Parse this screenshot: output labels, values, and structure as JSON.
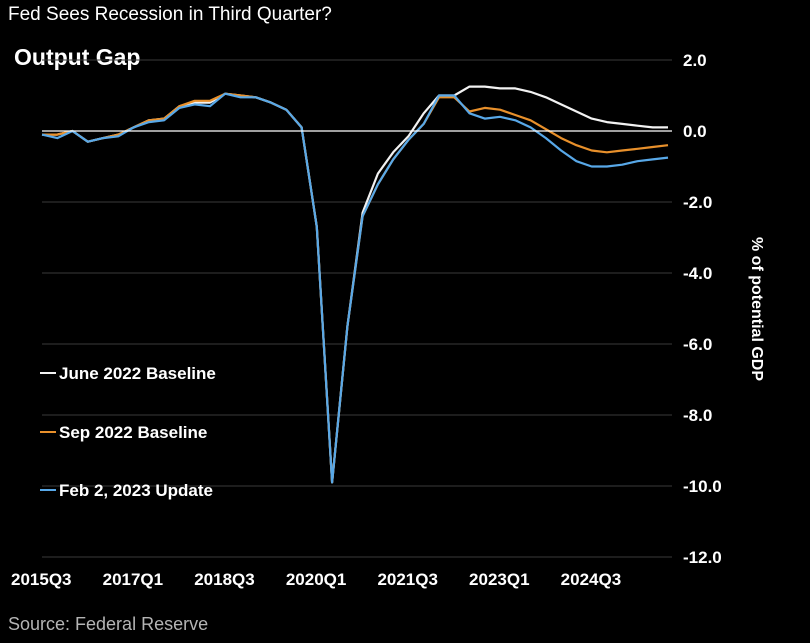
{
  "headline": "Fed Sees Recession in Third Quarter?",
  "source": "Source: Federal Reserve",
  "colors": {
    "background": "#000000",
    "grid": "#3a3a3a",
    "axis": "#ffffff"
  },
  "chart_data": {
    "type": "line",
    "title": "Output Gap",
    "ylabel": "% of potential GDP",
    "ylim": [
      -12.0,
      2.0
    ],
    "yticks": [
      2.0,
      0.0,
      -2.0,
      -4.0,
      -6.0,
      -8.0,
      -10.0,
      -12.0
    ],
    "ytick_labels": [
      "2.0",
      "0.0",
      "-2.0",
      "-4.0",
      "-6.0",
      "-8.0",
      "-10.0",
      "-12.0"
    ],
    "y_axis_position": "right",
    "grid": true,
    "legend_position": "left",
    "x_tick_labels": [
      "2015Q3",
      "2017Q1",
      "2018Q3",
      "2020Q1",
      "2021Q3",
      "2023Q1",
      "2024Q3"
    ],
    "x_tick_index": [
      0,
      6,
      12,
      18,
      24,
      30,
      36
    ],
    "categories": [
      "2015Q3",
      "2015Q4",
      "2016Q1",
      "2016Q2",
      "2016Q3",
      "2016Q4",
      "2017Q1",
      "2017Q2",
      "2017Q3",
      "2017Q4",
      "2018Q1",
      "2018Q2",
      "2018Q3",
      "2018Q4",
      "2019Q1",
      "2019Q2",
      "2019Q3",
      "2019Q4",
      "2020Q1",
      "2020Q2",
      "2020Q3",
      "2020Q4",
      "2021Q1",
      "2021Q2",
      "2021Q3",
      "2021Q4",
      "2022Q1",
      "2022Q2",
      "2022Q3",
      "2022Q4",
      "2023Q1",
      "2023Q2",
      "2023Q3",
      "2023Q4",
      "2024Q1",
      "2024Q2",
      "2024Q3",
      "2024Q4",
      "2025Q1",
      "2025Q2",
      "2025Q3",
      "2025Q4"
    ],
    "series": [
      {
        "name": "June 2022 Baseline",
        "color": "#f2f2f2",
        "values": [
          -0.1,
          -0.1,
          0.0,
          -0.3,
          -0.2,
          -0.1,
          0.1,
          0.3,
          0.35,
          0.7,
          0.8,
          0.8,
          1.05,
          1.0,
          0.95,
          0.8,
          0.6,
          0.1,
          -2.7,
          -9.9,
          -5.5,
          -2.3,
          -1.2,
          -0.6,
          -0.15,
          0.5,
          1.0,
          1.0,
          1.25,
          1.25,
          1.2,
          1.2,
          1.1,
          0.95,
          0.75,
          0.55,
          0.35,
          0.25,
          0.2,
          0.15,
          0.1,
          0.1
        ]
      },
      {
        "name": "Sep 2022 Baseline",
        "color": "#e8902b",
        "values": [
          -0.1,
          -0.1,
          0.0,
          -0.3,
          -0.2,
          -0.1,
          0.1,
          0.3,
          0.35,
          0.7,
          0.85,
          0.85,
          1.05,
          1.0,
          0.95,
          0.8,
          0.6,
          0.1,
          -2.7,
          -9.9,
          -5.5,
          -2.4,
          -1.5,
          -0.8,
          -0.25,
          0.2,
          0.95,
          0.95,
          0.55,
          0.65,
          0.6,
          0.45,
          0.3,
          0.05,
          -0.2,
          -0.4,
          -0.55,
          -0.6,
          -0.55,
          -0.5,
          -0.45,
          -0.4
        ]
      },
      {
        "name": "Feb 2, 2023 Update",
        "color": "#58a8e8",
        "values": [
          -0.1,
          -0.2,
          0.0,
          -0.3,
          -0.2,
          -0.15,
          0.1,
          0.25,
          0.3,
          0.65,
          0.75,
          0.7,
          1.05,
          0.95,
          0.95,
          0.8,
          0.6,
          0.1,
          -2.7,
          -9.9,
          -5.5,
          -2.4,
          -1.5,
          -0.8,
          -0.25,
          0.2,
          1.0,
          1.0,
          0.5,
          0.35,
          0.4,
          0.3,
          0.1,
          -0.2,
          -0.55,
          -0.85,
          -1.0,
          -1.0,
          -0.95,
          -0.85,
          -0.8,
          -0.75
        ]
      }
    ]
  }
}
